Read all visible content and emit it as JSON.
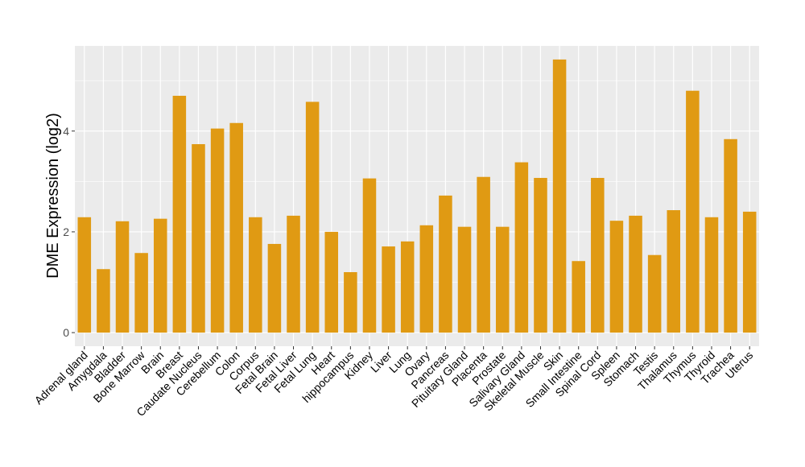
{
  "chart_data": {
    "type": "bar",
    "title": "",
    "xlabel": "",
    "ylabel": "DME Expression (log2)",
    "ylim": [
      -0.27,
      5.69
    ],
    "yticks": [
      0,
      2,
      4
    ],
    "grid": true,
    "bar_color": "#E09A13",
    "panel_color": "#EBEBEB",
    "categories": [
      "Adrenal gland",
      "Amygdala",
      "Bladder",
      "Bone Marrow",
      "Brain",
      "Breast",
      "Caudate Nucleus",
      "Cerebellum",
      "Colon",
      "Corpus",
      "Fetal Brain",
      "Fetal Liver",
      "Fetal Lung",
      "Heart",
      "hippocampus",
      "Kidney",
      "Liver",
      "Lung",
      "Ovary",
      "Pancreas",
      "Pituitary Gland",
      "Placenta",
      "Prostate",
      "Salivary Gland",
      "Skeletal Muscle",
      "Skin",
      "Small Intestine",
      "Spinal Cord",
      "Spleen",
      "Stomach",
      "Testis",
      "Thalamus",
      "Thymus",
      "Thyroid",
      "Trachea",
      "Uterus"
    ],
    "values": [
      2.29,
      1.26,
      2.21,
      1.58,
      2.26,
      4.7,
      3.74,
      4.05,
      4.16,
      2.29,
      1.76,
      2.32,
      4.58,
      2.0,
      1.2,
      3.06,
      1.71,
      1.81,
      2.13,
      2.72,
      2.1,
      3.09,
      2.1,
      3.38,
      3.07,
      5.42,
      1.42,
      3.07,
      2.22,
      2.32,
      1.54,
      2.43,
      4.8,
      2.29,
      3.84,
      2.4
    ]
  }
}
